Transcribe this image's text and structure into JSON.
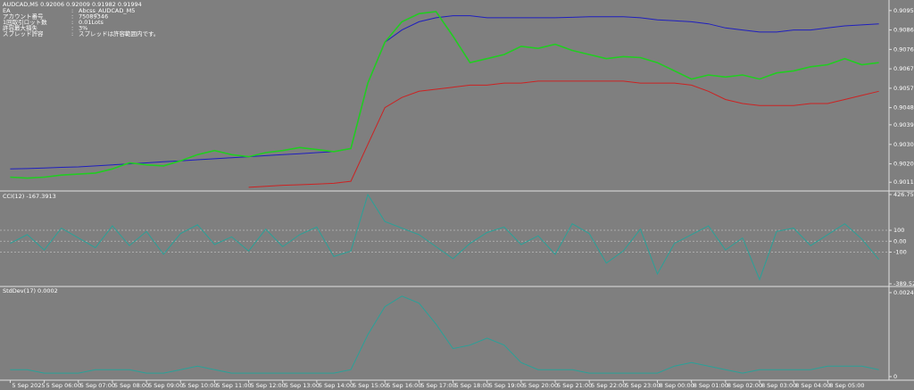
{
  "chart_data": [
    {
      "type": "line",
      "title": "AUDCAD,M5  0.92006 0.92009 0.91982 0.91994",
      "annotations": [
        {
          "label": "EA",
          "value": "Abcss_AUDCAD_M5"
        },
        {
          "label": "アカウント番号",
          "value": "75089346"
        },
        {
          "label": "1回取引ロット数",
          "value": "0.01Lots"
        },
        {
          "label": "許容最大損失",
          "value": "3%"
        },
        {
          "label": "スプレッド許容",
          "value": "スプレッドは許容範囲内です。"
        }
      ],
      "x": [
        0,
        0.5,
        1,
        1.5,
        2,
        2.5,
        3,
        3.5,
        4,
        4.5,
        5,
        5.5,
        6,
        6.5,
        7,
        7.5,
        8,
        8.5,
        9,
        9.5,
        10,
        10.5,
        11,
        11.5,
        12,
        12.5,
        13,
        13.5,
        14,
        14.5,
        15,
        15.5,
        16,
        16.5,
        17,
        17.5,
        18,
        18.5,
        19,
        19.5,
        20,
        20.5,
        21,
        21.5,
        22,
        22.5,
        23,
        23.5,
        24,
        24.5,
        25,
        25.5
      ],
      "series": [
        {
          "color": "#1f1fbf",
          "values": [
            0.9018,
            0.90182,
            0.90185,
            0.90188,
            0.9019,
            0.90195,
            0.902,
            0.90205,
            0.9021,
            0.90215,
            0.9022,
            0.90225,
            0.9023,
            0.90235,
            0.9024,
            0.90245,
            0.9025,
            0.90255,
            0.9026,
            0.90265,
            0.9028,
            0.906,
            0.908,
            0.9086,
            0.909,
            0.9092,
            0.9093,
            0.9093,
            0.9092,
            0.9092,
            0.9092,
            0.9092,
            0.9092,
            0.90922,
            0.90925,
            0.90925,
            0.90925,
            0.9092,
            0.9091,
            0.90905,
            0.909,
            0.9089,
            0.9087,
            0.9086,
            0.9085,
            0.9085,
            0.9086,
            0.9086,
            0.9087,
            0.9088,
            0.90885,
            0.9089
          ]
        },
        {
          "color": "#cc2222",
          "values": [
            null,
            null,
            null,
            null,
            null,
            null,
            null,
            null,
            null,
            null,
            null,
            null,
            null,
            null,
            0.9009,
            0.90095,
            0.901,
            0.90103,
            0.90106,
            0.9011,
            0.9012,
            0.903,
            0.9048,
            0.9053,
            0.9056,
            0.9057,
            0.9058,
            0.9059,
            0.9059,
            0.906,
            0.906,
            0.9061,
            0.9061,
            0.9061,
            0.9061,
            0.9061,
            0.9061,
            0.906,
            0.906,
            0.906,
            0.9059,
            0.9056,
            0.9052,
            0.905,
            0.9049,
            0.9049,
            0.9049,
            0.905,
            0.905,
            0.9052,
            0.9054,
            0.9056
          ]
        },
        {
          "color": "#22cc22",
          "values": [
            0.9014,
            0.90135,
            0.9014,
            0.9015,
            0.90155,
            0.9016,
            0.9018,
            0.9021,
            0.902,
            0.90195,
            0.9022,
            0.9025,
            0.9027,
            0.9025,
            0.9024,
            0.9026,
            0.9027,
            0.90285,
            0.90275,
            0.90265,
            0.9028,
            0.906,
            0.908,
            0.909,
            0.9094,
            0.9095,
            0.9083,
            0.907,
            0.9072,
            0.9074,
            0.9078,
            0.9077,
            0.9079,
            0.9076,
            0.9074,
            0.9072,
            0.9073,
            0.90725,
            0.907,
            0.9066,
            0.9062,
            0.9064,
            0.9063,
            0.9064,
            0.9062,
            0.9065,
            0.9066,
            0.9068,
            0.9069,
            0.9072,
            0.9069,
            0.907
          ]
        }
      ],
      "ylim": [
        0.90081,
        0.90998
      ],
      "yticks": [
        0.90955,
        {
          "value": 0.9086,
          "label": "0.90860"
        },
        0.90765,
        {
          "value": 0.9067,
          "label": "0.90670"
        },
        0.90575,
        {
          "value": 0.9048,
          "label": "0.90480"
        },
        0.90396,
        {
          "value": 0.903,
          "label": "0.90300"
        },
        0.90205,
        0.90115
      ],
      "xlim": [
        -0.3,
        25.8
      ],
      "xticks": [
        {
          "value": 0,
          "label": "5 Sep 2025"
        },
        {
          "value": 1,
          "label": "5 Sep 06:00"
        },
        {
          "value": 2,
          "label": "5 Sep 07:00"
        },
        {
          "value": 3,
          "label": "5 Sep 08:00"
        },
        {
          "value": 4,
          "label": "5 Sep 09:00"
        },
        {
          "value": 5,
          "label": "5 Sep 10:00"
        },
        {
          "value": 6,
          "label": "5 Sep 11:00"
        },
        {
          "value": 7,
          "label": "5 Sep 12:00"
        },
        {
          "value": 8,
          "label": "5 Sep 13:00"
        },
        {
          "value": 9,
          "label": "5 Sep 14:00"
        },
        {
          "value": 10,
          "label": "5 Sep 15:00"
        },
        {
          "value": 11,
          "label": "5 Sep 16:00"
        },
        {
          "value": 12,
          "label": "5 Sep 17:00"
        },
        {
          "value": 13,
          "label": "5 Sep 18:00"
        },
        {
          "value": 14,
          "label": "5 Sep 19:00"
        },
        {
          "value": 15,
          "label": "5 Sep 20:00"
        },
        {
          "value": 16,
          "label": "5 Sep 21:00"
        },
        {
          "value": 17,
          "label": "5 Sep 22:00"
        },
        {
          "value": 18,
          "label": "5 Sep 23:00"
        },
        {
          "value": 19,
          "label": "8 Sep 00:00"
        },
        {
          "value": 20,
          "label": "8 Sep 01:00"
        },
        {
          "value": 21,
          "label": "8 Sep 02:00"
        },
        {
          "value": 22,
          "label": "8 Sep 03:00"
        },
        {
          "value": 23,
          "label": "8 Sep 04:00"
        },
        {
          "value": 24,
          "label": "8 Sep 05:00"
        }
      ]
    },
    {
      "type": "line",
      "title": "CCI(12) -167.3913",
      "x": [
        0,
        0.5,
        1,
        1.5,
        2,
        2.5,
        3,
        3.5,
        4,
        4.5,
        5,
        5.5,
        6,
        6.5,
        7,
        7.5,
        8,
        8.5,
        9,
        9.5,
        10,
        10.5,
        11,
        11.5,
        12,
        12.5,
        13,
        13.5,
        14,
        14.5,
        15,
        15.5,
        16,
        16.5,
        17,
        17.5,
        18,
        18.5,
        19,
        19.5,
        20,
        20.5,
        21,
        21.5,
        22,
        22.5,
        23,
        23.5,
        24,
        24.5,
        25,
        25.5
      ],
      "series": [
        {
          "color": "#2aa198",
          "values": [
            -20,
            60,
            -80,
            120,
            30,
            -60,
            140,
            -40,
            90,
            -120,
            70,
            150,
            -30,
            40,
            -90,
            110,
            -50,
            60,
            130,
            -140,
            -90,
            426,
            180,
            120,
            60,
            -50,
            -160,
            -20,
            80,
            130,
            -30,
            50,
            -120,
            160,
            70,
            -200,
            -90,
            110,
            -300,
            -20,
            60,
            140,
            -80,
            30,
            -350,
            90,
            120,
            -40,
            60,
            160,
            20,
            -167
          ]
        }
      ],
      "ylim": [
        -389.5276,
        426.7528
      ],
      "yticks": [
        426.7528,
        100,
        {
          "value": 0,
          "label": "0.00"
        },
        -100,
        -389.5276
      ]
    },
    {
      "type": "line",
      "title": "StdDev(17) 0.0002",
      "x": [
        0,
        0.5,
        1,
        1.5,
        2,
        2.5,
        3,
        3.5,
        4,
        4.5,
        5,
        5.5,
        6,
        6.5,
        7,
        7.5,
        8,
        8.5,
        9,
        9.5,
        10,
        10.5,
        11,
        11.5,
        12,
        12.5,
        13,
        13.5,
        14,
        14.5,
        15,
        15.5,
        16,
        16.5,
        17,
        17.5,
        18,
        18.5,
        19,
        19.5,
        20,
        20.5,
        21,
        21.5,
        22,
        22.5,
        23,
        23.5,
        24,
        24.5,
        25,
        25.5
      ],
      "series": [
        {
          "color": "#2aa198",
          "values": [
            0.0002,
            0.0002,
            0.0001,
            0.0001,
            0.0001,
            0.0002,
            0.0002,
            0.0002,
            0.0001,
            0.0001,
            0.0002,
            0.0003,
            0.0002,
            0.0001,
            0.0001,
            0.0001,
            0.0001,
            0.0001,
            0.0001,
            0.0001,
            0.0002,
            0.0012,
            0.002,
            0.0023,
            0.0021,
            0.0015,
            0.0008,
            0.0009,
            0.0011,
            0.0009,
            0.0004,
            0.0002,
            0.0002,
            0.0002,
            0.0001,
            0.0001,
            0.0001,
            0.0001,
            0.0001,
            0.0003,
            0.0004,
            0.0003,
            0.0002,
            0.0001,
            0.0002,
            0.0002,
            0.0002,
            0.0002,
            0.0003,
            0.0003,
            0.0003,
            0.0002
          ]
        }
      ],
      "ylim": [
        0,
        0.0025
      ],
      "yticks": [
        0.0024,
        0
      ]
    }
  ]
}
